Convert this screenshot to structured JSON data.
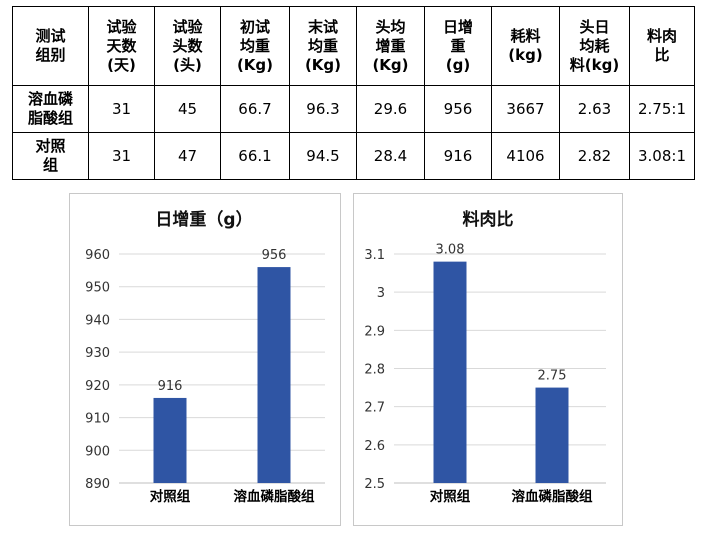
{
  "table": {
    "headers": [
      "测试\n组别",
      "试验\n天数\n(天)",
      "试验\n头数\n(头)",
      "初试\n均重\n(Kg)",
      "末试\n均重\n(Kg)",
      "头均\n增重\n(Kg)",
      "日增\n重\n(g)",
      "耗料\n(kg)",
      "头日\n均耗\n料(kg)",
      "料肉\n比"
    ],
    "rows": [
      [
        "溶血磷\n脂酸组",
        "31",
        "45",
        "66.7",
        "96.3",
        "29.6",
        "956",
        "3667",
        "2.63",
        "2.75:1"
      ],
      [
        "对照\n组",
        "31",
        "47",
        "66.1",
        "94.5",
        "28.4",
        "916",
        "4106",
        "2.82",
        "3.08:1"
      ]
    ]
  },
  "chart_data": [
    {
      "type": "bar",
      "title": "日增重（g）",
      "categories": [
        "对照组",
        "溶血磷脂酸组"
      ],
      "values": [
        916,
        956
      ],
      "data_labels": [
        "916",
        "956"
      ],
      "ylim": [
        890,
        960
      ],
      "yticks": [
        "890",
        "900",
        "910",
        "920",
        "930",
        "940",
        "950",
        "960"
      ],
      "grid": true,
      "bar_color": "#2f55a4"
    },
    {
      "type": "bar",
      "title": "料肉比",
      "categories": [
        "对照组",
        "溶血磷脂酸组"
      ],
      "values": [
        3.08,
        2.75
      ],
      "data_labels": [
        "3.08",
        "2.75"
      ],
      "ylim": [
        2.5,
        3.1
      ],
      "yticks": [
        "2.5",
        "2.6",
        "2.7",
        "2.8",
        "2.9",
        "3",
        "3.1"
      ],
      "grid": true,
      "bar_color": "#2f55a4"
    }
  ]
}
